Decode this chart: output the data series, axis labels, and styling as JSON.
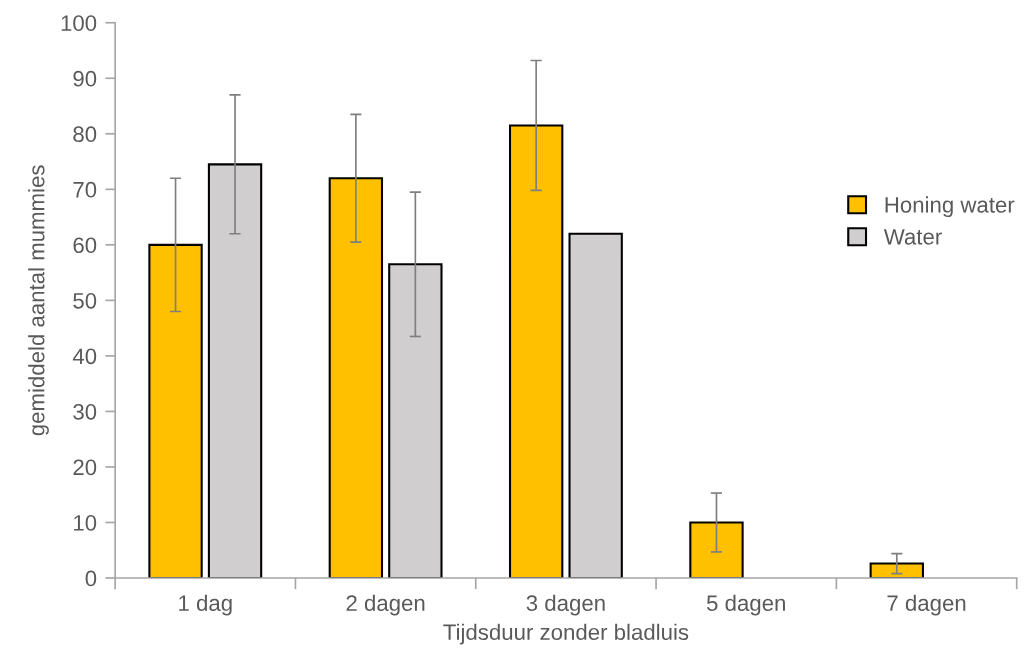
{
  "chart_data": {
    "type": "bar",
    "xlabel": "Tijdsduur zonder bladluis",
    "ylabel": "gemiddeld aantal mummies",
    "categories": [
      "1 dag",
      "2 dagen",
      "3 dagen",
      "5 dagen",
      "7 dagen"
    ],
    "series": [
      {
        "name": "Honing water",
        "color": "#ffc000",
        "values": [
          60,
          72,
          81.5,
          10,
          2.6
        ],
        "errors": [
          12,
          11.5,
          11.7,
          5.3,
          1.8
        ]
      },
      {
        "name": "Water",
        "color": "#d0cece",
        "values": [
          74.5,
          56.5,
          62,
          null,
          null
        ],
        "errors": [
          12.5,
          13,
          null,
          null,
          null
        ]
      }
    ],
    "ylim": [
      0,
      100
    ],
    "yticks": [
      0,
      10,
      20,
      30,
      40,
      50,
      60,
      70,
      80,
      90,
      100
    ],
    "grid": false,
    "legend": "right"
  }
}
